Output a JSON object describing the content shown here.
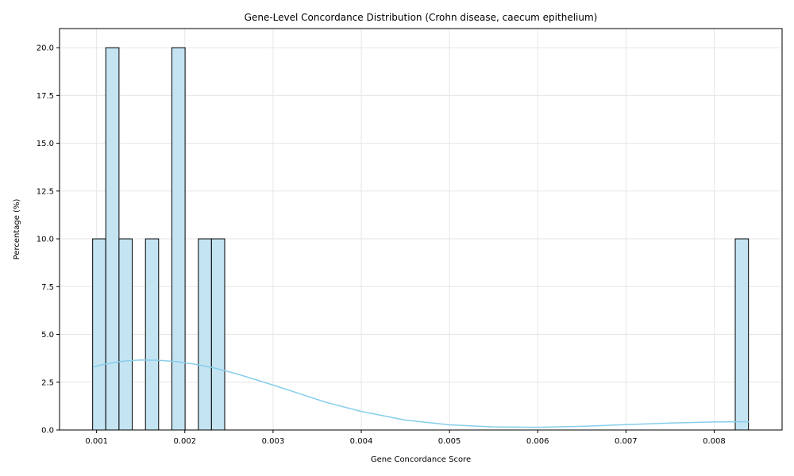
{
  "chart_data": {
    "type": "bar",
    "title": "Gene-Level Concordance Distribution (Crohn disease, caecum epithelium)",
    "xlabel": "Gene Concordance Score",
    "ylabel": "Percentage (%)",
    "xlim": [
      0.00058,
      0.00877
    ],
    "ylim": [
      0,
      21
    ],
    "grid": true,
    "colors": {
      "bar_fill": "#c4e4f2",
      "bar_edge": "#000000",
      "kde": "#87ceeb",
      "grid": "#e6e6e6"
    },
    "x_ticks": [
      {
        "value": 0.001,
        "label": "0.001"
      },
      {
        "value": 0.002,
        "label": "0.002"
      },
      {
        "value": 0.003,
        "label": "0.003"
      },
      {
        "value": 0.004,
        "label": "0.004"
      },
      {
        "value": 0.005,
        "label": "0.005"
      },
      {
        "value": 0.006,
        "label": "0.006"
      },
      {
        "value": 0.007,
        "label": "0.007"
      },
      {
        "value": 0.008,
        "label": "0.008"
      }
    ],
    "y_ticks": [
      {
        "value": 0,
        "label": "0.0"
      },
      {
        "value": 2.5,
        "label": "2.5"
      },
      {
        "value": 5,
        "label": "5.0"
      },
      {
        "value": 7.5,
        "label": "7.5"
      },
      {
        "value": 10,
        "label": "10.0"
      },
      {
        "value": 12.5,
        "label": "12.5"
      },
      {
        "value": 15,
        "label": "15.0"
      },
      {
        "value": 17.5,
        "label": "17.5"
      },
      {
        "value": 20,
        "label": "20.0"
      }
    ],
    "bins": [
      {
        "x0": 0.000955,
        "x1": 0.001104,
        "percent": 10
      },
      {
        "x0": 0.001104,
        "x1": 0.001254,
        "percent": 20
      },
      {
        "x0": 0.001254,
        "x1": 0.001404,
        "percent": 10
      },
      {
        "x0": 0.001554,
        "x1": 0.001703,
        "percent": 10
      },
      {
        "x0": 0.001853,
        "x1": 0.002003,
        "percent": 20
      },
      {
        "x0": 0.002153,
        "x1": 0.002302,
        "percent": 10
      },
      {
        "x0": 0.002302,
        "x1": 0.002452,
        "percent": 10
      },
      {
        "x0": 0.008239,
        "x1": 0.008389,
        "percent": 10
      }
    ],
    "kde_points": [
      [
        0.00096,
        3.3
      ],
      [
        0.0011,
        3.45
      ],
      [
        0.0013,
        3.6
      ],
      [
        0.0015,
        3.66
      ],
      [
        0.0017,
        3.65
      ],
      [
        0.0019,
        3.58
      ],
      [
        0.0021,
        3.45
      ],
      [
        0.0023,
        3.28
      ],
      [
        0.0025,
        3.05
      ],
      [
        0.0027,
        2.78
      ],
      [
        0.003,
        2.35
      ],
      [
        0.0033,
        1.9
      ],
      [
        0.0036,
        1.45
      ],
      [
        0.004,
        0.97
      ],
      [
        0.0045,
        0.52
      ],
      [
        0.005,
        0.27
      ],
      [
        0.0055,
        0.16
      ],
      [
        0.006,
        0.14
      ],
      [
        0.0065,
        0.19
      ],
      [
        0.007,
        0.28
      ],
      [
        0.0075,
        0.36
      ],
      [
        0.008,
        0.42
      ],
      [
        0.0084,
        0.43
      ]
    ]
  }
}
